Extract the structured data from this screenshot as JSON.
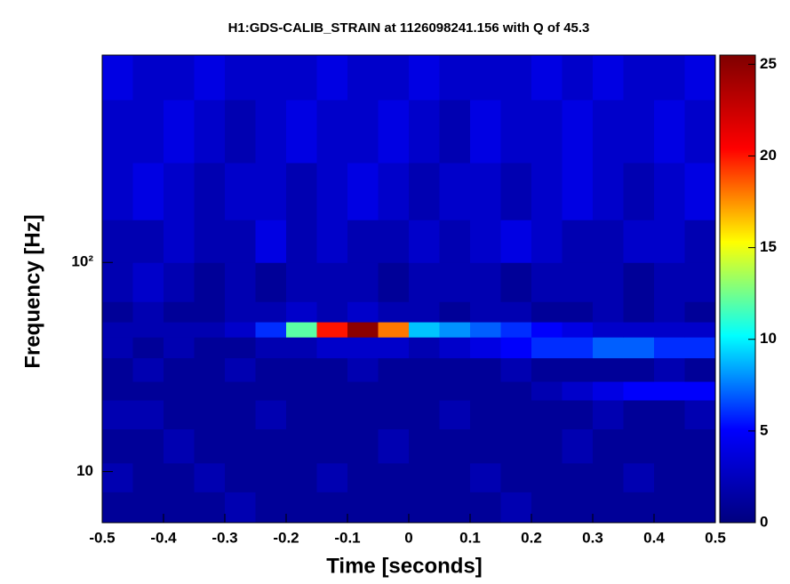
{
  "chart_data": {
    "type": "heatmap",
    "title": "H1:GDS-CALIB_STRAIN at 1126098241.156 with Q of 45.3",
    "x_label": "Time [seconds]",
    "y_label": "Frequency [Hz]",
    "xlim": [
      -0.5,
      0.5
    ],
    "xticks": [
      -0.5,
      -0.4,
      -0.3,
      -0.2,
      -0.1,
      0,
      0.1,
      0.2,
      0.3,
      0.4,
      0.5
    ],
    "ylim": [
      5.7,
      980
    ],
    "yticks": [
      10,
      {
        "value": 100,
        "label": "10²"
      }
    ],
    "log_y": true,
    "x_bins": [
      -0.5,
      -0.45,
      -0.4,
      -0.35,
      -0.3,
      -0.25,
      -0.2,
      -0.15,
      -0.1,
      -0.05,
      0,
      0.05,
      0.1,
      0.15,
      0.2,
      0.25,
      0.3,
      0.35,
      0.4,
      0.45,
      0.5
    ],
    "y_bins": [
      5.7,
      8,
      11,
      16,
      22,
      27,
      35,
      44,
      52,
      65,
      100,
      160,
      300,
      600,
      980
    ],
    "z": [
      [
        1,
        1,
        1,
        1,
        2,
        1,
        1,
        1,
        1,
        1,
        1,
        1,
        1,
        2,
        1,
        1,
        1,
        1,
        1,
        1
      ],
      [
        2,
        1,
        1,
        2,
        1,
        1,
        1,
        2,
        1,
        1,
        1,
        1,
        2,
        1,
        1,
        1,
        1,
        2,
        1,
        1
      ],
      [
        1,
        1,
        2,
        1,
        1,
        1,
        1,
        1,
        1,
        2,
        1,
        1,
        1,
        1,
        1,
        2,
        1,
        1,
        1,
        1
      ],
      [
        2,
        2,
        1,
        1,
        1,
        2,
        1,
        1,
        1,
        1,
        1,
        2,
        1,
        1,
        1,
        1,
        2,
        1,
        1,
        2
      ],
      [
        1,
        1,
        1,
        1,
        1,
        1,
        1,
        1,
        1,
        1,
        1,
        1,
        1,
        1,
        2,
        3,
        4,
        5,
        5,
        5
      ],
      [
        1,
        2,
        1,
        1,
        2,
        1,
        1,
        1,
        2,
        1,
        1,
        1,
        1,
        2,
        1,
        1,
        1,
        1,
        2,
        1
      ],
      [
        2,
        1,
        2,
        1,
        1,
        2,
        2,
        3,
        3,
        3,
        2,
        3,
        4,
        5,
        6,
        6,
        7,
        7,
        6,
        6
      ],
      [
        2,
        2,
        2,
        2,
        3,
        6,
        12,
        20,
        25,
        18,
        9,
        8,
        7,
        6,
        5,
        4,
        3,
        3,
        3,
        3
      ],
      [
        1,
        2,
        1,
        1,
        2,
        2,
        3,
        2,
        3,
        2,
        2,
        1,
        2,
        2,
        1,
        1,
        2,
        1,
        2,
        1
      ],
      [
        2,
        3,
        2,
        1,
        2,
        1,
        2,
        2,
        2,
        1,
        2,
        2,
        2,
        1,
        2,
        2,
        2,
        1,
        2,
        2
      ],
      [
        2,
        2,
        3,
        2,
        2,
        4,
        2,
        3,
        2,
        2,
        3,
        2,
        3,
        4,
        3,
        2,
        2,
        3,
        3,
        2
      ],
      [
        3,
        4,
        3,
        2,
        3,
        3,
        2,
        3,
        4,
        3,
        2,
        3,
        3,
        2,
        3,
        4,
        3,
        2,
        3,
        4
      ],
      [
        3,
        3,
        4,
        3,
        2,
        3,
        4,
        3,
        3,
        4,
        3,
        2,
        4,
        3,
        3,
        4,
        3,
        3,
        4,
        3
      ],
      [
        4,
        3,
        3,
        4,
        3,
        3,
        3,
        4,
        3,
        3,
        4,
        3,
        3,
        3,
        4,
        3,
        4,
        3,
        3,
        4
      ]
    ],
    "zlim": [
      0,
      25.5
    ],
    "zticks": [
      0,
      5,
      10,
      15,
      20,
      25
    ],
    "colormap": [
      "#00007f",
      "#0000ff",
      "#00ffff",
      "#ffff00",
      "#ff0000",
      "#7f0000"
    ]
  }
}
